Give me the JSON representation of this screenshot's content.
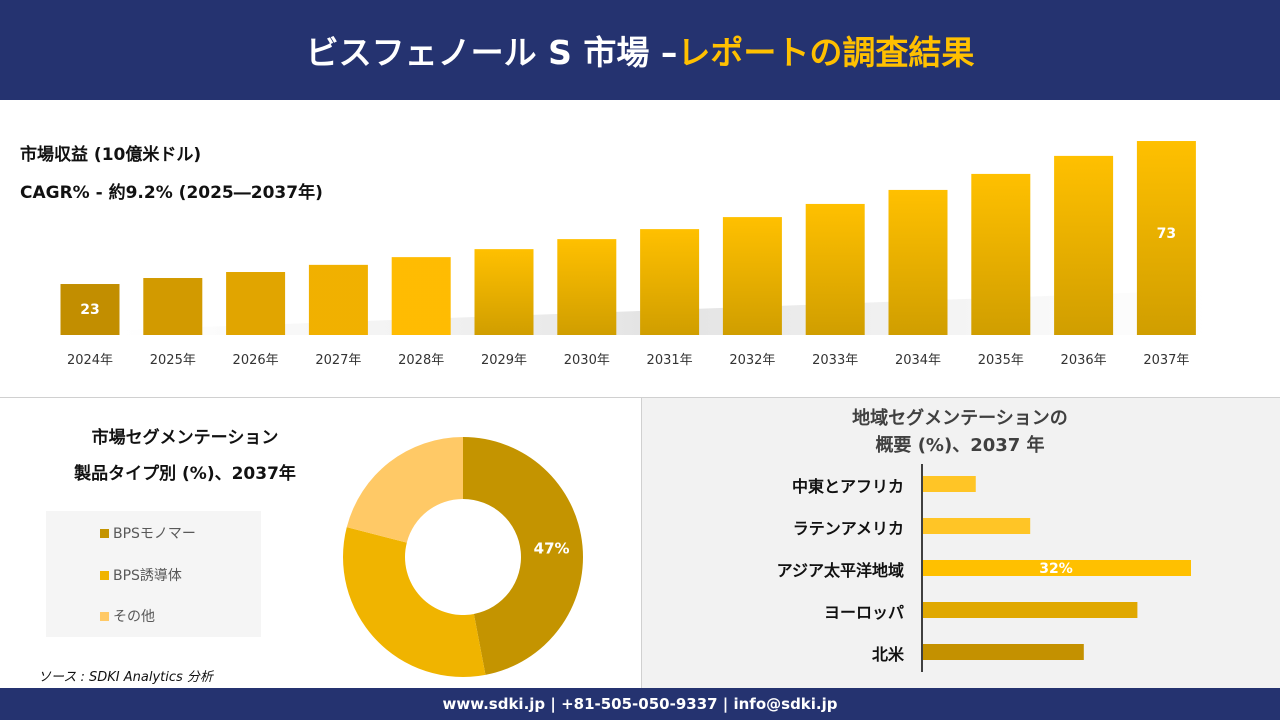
{
  "header": {
    "title_white": "ビスフェノール S 市場 –",
    "title_yellow": "レポートの調査結果"
  },
  "revenue": {
    "title": "市場収益 (10億米ドル)",
    "cagr": "CAGR% - 約9.2% (2025―2037年)"
  },
  "chart_data": [
    {
      "type": "bar",
      "categories": [
        "2024年",
        "2025年",
        "2026年",
        "2027年",
        "2028年",
        "2029年",
        "2030年",
        "2031年",
        "2032年",
        "2033年",
        "2034年",
        "2035年",
        "2036年",
        "2037年"
      ],
      "values": [
        23,
        25.1,
        27.2,
        29.7,
        32.4,
        35.2,
        38.7,
        42.2,
        46.4,
        51,
        55.9,
        61.5,
        67.8,
        73
      ],
      "data_labels": {
        "0": "23",
        "13": "73"
      },
      "ylabel": "市場収益 (10億米ドル)",
      "grid": false
    },
    {
      "type": "pie",
      "title": "市場セグメンテーション 製品タイプ別 (%)、2037年",
      "categories": [
        "BPSモノマー",
        "BPS誘導体",
        "その他"
      ],
      "values": [
        47,
        32,
        21
      ],
      "data_labels": {
        "0": "47%"
      },
      "colors": [
        "#c49400",
        "#f0b400",
        "#ffc966"
      ],
      "legend": "left"
    },
    {
      "type": "bar",
      "orientation": "horizontal",
      "title": "地域セグメンテーションの 概要 (%)、2037 年",
      "categories": [
        "中東とアフリカ",
        "ラテンアメリカ",
        "アジア太平洋地域",
        "ヨーロッパ",
        "北米"
      ],
      "values": [
        6.3,
        12.8,
        32,
        25.6,
        19.2
      ],
      "data_labels": {
        "2": "32%"
      },
      "colors": [
        "#ffc526",
        "#ffc526",
        "#ffc000",
        "#e0a800",
        "#c49100"
      ]
    }
  ],
  "segment": {
    "title_line1": "市場セグメンテーション",
    "title_line2": "製品タイプ別 (%)、2037年"
  },
  "region": {
    "title_line1": "地域セグメンテーションの",
    "title_line2": "概要 (%)、2037 年"
  },
  "source": "ソース : SDKI Analytics 分析",
  "footer": "www.sdki.jp | +81-505-050-9337 | info@sdki.jp"
}
